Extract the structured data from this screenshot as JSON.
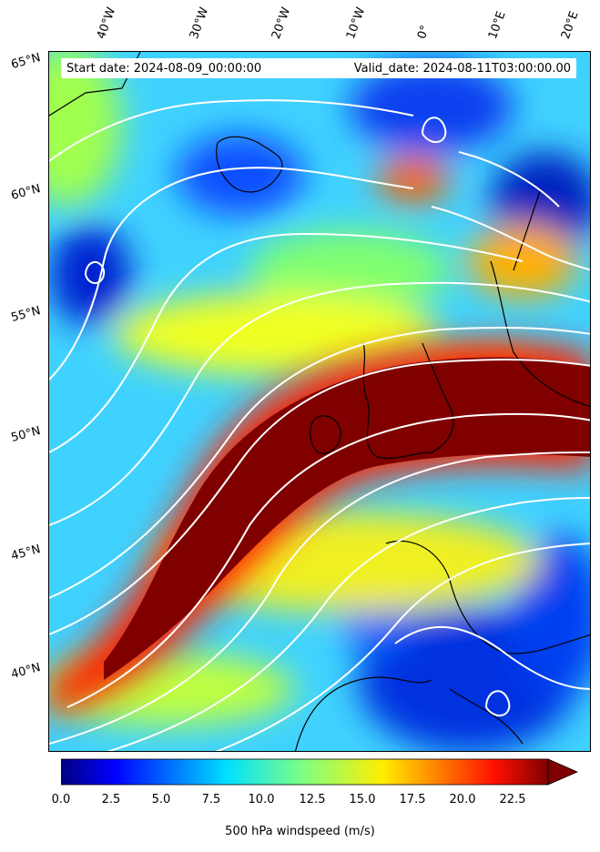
{
  "map": {
    "start_label": "Start date: 2024-08-09_00:00:00",
    "valid_label": "Valid_date: 2024-08-11T03:00:00.00",
    "longitude_labels": [
      "40°W",
      "30°W",
      "20°W",
      "10°W",
      "0°",
      "10°E",
      "20°E"
    ],
    "latitude_labels": [
      "65°N",
      "60°N",
      "55°N",
      "50°N",
      "45°N",
      "40°N"
    ],
    "field": "500 hPa windspeed",
    "colormap": "jet",
    "overlay": "white streamlines",
    "coastline_color": "#000000"
  },
  "colorbar": {
    "label": "500 hPa windspeed (m/s)",
    "ticks": [
      "0.0",
      "2.5",
      "5.0",
      "7.5",
      "10.0",
      "12.5",
      "15.0",
      "17.5",
      "20.0",
      "22.5"
    ],
    "range": [
      0,
      25
    ],
    "extend": "max"
  }
}
